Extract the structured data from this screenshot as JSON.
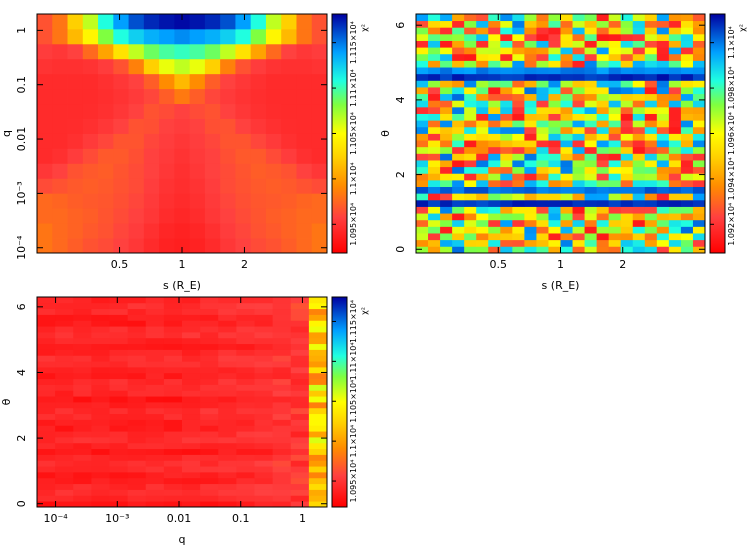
{
  "chart_data": [
    {
      "type": "heatmap",
      "xlabel": "s (R_E)",
      "ylabel": "q",
      "xscale": "log",
      "yscale": "log",
      "xlim": [
        0.2,
        5.0
      ],
      "ylim": [
        8e-05,
        2.0
      ],
      "x_ticks": [
        {
          "v": 0.5,
          "label": "0.5"
        },
        {
          "v": 1,
          "label": "1"
        },
        {
          "v": 2,
          "label": "2"
        }
      ],
      "y_ticks": [
        {
          "v": 0.0001,
          "label": "10⁻⁴"
        },
        {
          "v": 0.001,
          "label": "10⁻³"
        },
        {
          "v": 0.01,
          "label": "0.01"
        },
        {
          "v": 0.1,
          "label": "0.1"
        },
        {
          "v": 1,
          "label": "1"
        }
      ],
      "colorbar_label": "χ²",
      "colorbar_ticks": [
        "1.095×10⁴",
        "1.1×10⁴",
        "1.105×10⁴",
        "1.11×10⁴",
        "1.115×10⁴"
      ],
      "colorbar_range": [
        10930,
        11180
      ],
      "nx": 19,
      "ny": 16,
      "z": [
        [
          10990,
          10985,
          10980,
          10975,
          10972,
          10968,
          10962,
          10955,
          10950,
          10948,
          10950,
          10955,
          10962,
          10968,
          10972,
          10975,
          10980,
          10985,
          10990
        ],
        [
          10990,
          10985,
          10982,
          10978,
          10975,
          10970,
          10965,
          10958,
          10952,
          10950,
          10952,
          10958,
          10965,
          10970,
          10975,
          10978,
          10982,
          10985,
          10990
        ],
        [
          10985,
          10985,
          10982,
          10980,
          10976,
          10972,
          10968,
          10962,
          10956,
          10953,
          10956,
          10962,
          10968,
          10972,
          10976,
          10980,
          10982,
          10985,
          10985
        ],
        [
          10985,
          10983,
          10980,
          10978,
          10977,
          10974,
          10970,
          10964,
          10958,
          10955,
          10958,
          10964,
          10970,
          10974,
          10977,
          10978,
          10980,
          10983,
          10985
        ],
        [
          10972,
          10975,
          10978,
          10980,
          10978,
          10975,
          10972,
          10966,
          10960,
          10957,
          10960,
          10966,
          10972,
          10975,
          10978,
          10980,
          10978,
          10975,
          10972
        ],
        [
          10962,
          10968,
          10975,
          10978,
          10980,
          10976,
          10972,
          10968,
          10962,
          10958,
          10962,
          10968,
          10972,
          10976,
          10980,
          10978,
          10975,
          10968,
          10962
        ],
        [
          10955,
          10958,
          10965,
          10972,
          10978,
          10978,
          10974,
          10968,
          10964,
          10960,
          10964,
          10968,
          10974,
          10978,
          10978,
          10972,
          10965,
          10958,
          10955
        ],
        [
          10955,
          10955,
          10958,
          10964,
          10970,
          10976,
          10976,
          10970,
          10966,
          10962,
          10966,
          10970,
          10976,
          10976,
          10970,
          10964,
          10958,
          10955,
          10955
        ],
        [
          10955,
          10955,
          10956,
          10958,
          10962,
          10968,
          10975,
          10974,
          10968,
          10965,
          10968,
          10974,
          10975,
          10968,
          10962,
          10958,
          10956,
          10955,
          10955
        ],
        [
          10955,
          10955,
          10955,
          10956,
          10958,
          10962,
          10968,
          10975,
          10972,
          10968,
          10972,
          10975,
          10968,
          10962,
          10958,
          10956,
          10955,
          10955,
          10955
        ],
        [
          10955,
          10955,
          10955,
          10955,
          10957,
          10960,
          10964,
          10970,
          10980,
          10992,
          10980,
          10970,
          10964,
          10960,
          10957,
          10955,
          10955,
          10955,
          10955
        ],
        [
          10955,
          10955,
          10955,
          10955,
          10958,
          10962,
          10968,
          10980,
          11000,
          11020,
          11000,
          10980,
          10968,
          10962,
          10958,
          10955,
          10955,
          10955,
          10955
        ],
        [
          10960,
          10958,
          10958,
          10960,
          10965,
          10975,
          10995,
          11030,
          11060,
          11070,
          11060,
          11030,
          10995,
          10975,
          10965,
          10960,
          10958,
          10958,
          10960
        ],
        [
          10965,
          10962,
          10968,
          10985,
          11010,
          11040,
          11070,
          11090,
          11100,
          11105,
          11100,
          11090,
          11070,
          11040,
          11010,
          10985,
          10968,
          10962,
          10965
        ],
        [
          10975,
          10990,
          11020,
          11050,
          11085,
          11110,
          11125,
          11135,
          11140,
          11145,
          11140,
          11135,
          11125,
          11110,
          11085,
          11050,
          11020,
          10990,
          10975
        ],
        [
          10975,
          10990,
          11030,
          11070,
          11110,
          11140,
          11160,
          11170,
          11175,
          11178,
          11175,
          11170,
          11160,
          11140,
          11110,
          11070,
          11030,
          10990,
          10975
        ]
      ]
    },
    {
      "type": "heatmap",
      "xlabel": "s (R_E)",
      "ylabel": "θ",
      "xscale": "log",
      "yscale": "linear",
      "xlim": [
        0.2,
        5.0
      ],
      "ylim": [
        -0.1,
        6.3
      ],
      "x_ticks": [
        {
          "v": 0.5,
          "label": "0.5"
        },
        {
          "v": 1,
          "label": "1"
        },
        {
          "v": 2,
          "label": "2"
        }
      ],
      "y_ticks": [
        {
          "v": 0,
          "label": "0"
        },
        {
          "v": 2,
          "label": "2"
        },
        {
          "v": 4,
          "label": "4"
        },
        {
          "v": 6,
          "label": "6"
        }
      ],
      "colorbar_label": "χ²",
      "colorbar_ticks": [
        "1.092×10⁴",
        "1.094×10⁴",
        "1.096×10⁴",
        "1.098×10⁴",
        "1.1×10⁴"
      ],
      "colorbar_range": [
        10910,
        11005
      ],
      "nx": 24,
      "ny": 36,
      "stripe_rows": [
        {
          "row": 7,
          "value": 11003
        },
        {
          "row": 9,
          "value": 10998
        },
        {
          "row": 26,
          "value": 11004
        },
        {
          "row": 27,
          "value": 10995
        }
      ]
    },
    {
      "type": "heatmap",
      "xlabel": "q",
      "ylabel": "θ",
      "xscale": "log",
      "yscale": "linear",
      "xlim": [
        5e-05,
        2.5
      ],
      "ylim": [
        -0.1,
        6.3
      ],
      "x_ticks": [
        {
          "v": 0.0001,
          "label": "10⁻⁴"
        },
        {
          "v": 0.001,
          "label": "10⁻³"
        },
        {
          "v": 0.01,
          "label": "0.01"
        },
        {
          "v": 0.1,
          "label": "0.1"
        },
        {
          "v": 1,
          "label": "1"
        }
      ],
      "y_ticks": [
        {
          "v": 0,
          "label": "0"
        },
        {
          "v": 2,
          "label": "2"
        },
        {
          "v": 4,
          "label": "4"
        },
        {
          "v": 6,
          "label": "6"
        }
      ],
      "colorbar_label": "χ²",
      "colorbar_ticks": [
        "1.095×10⁴",
        "1.1×10⁴",
        "1.105×10⁴",
        "1.11×10⁴",
        "1.115×10⁴"
      ],
      "colorbar_range": [
        10930,
        11180
      ],
      "nx": 16,
      "ny": 36
    }
  ]
}
